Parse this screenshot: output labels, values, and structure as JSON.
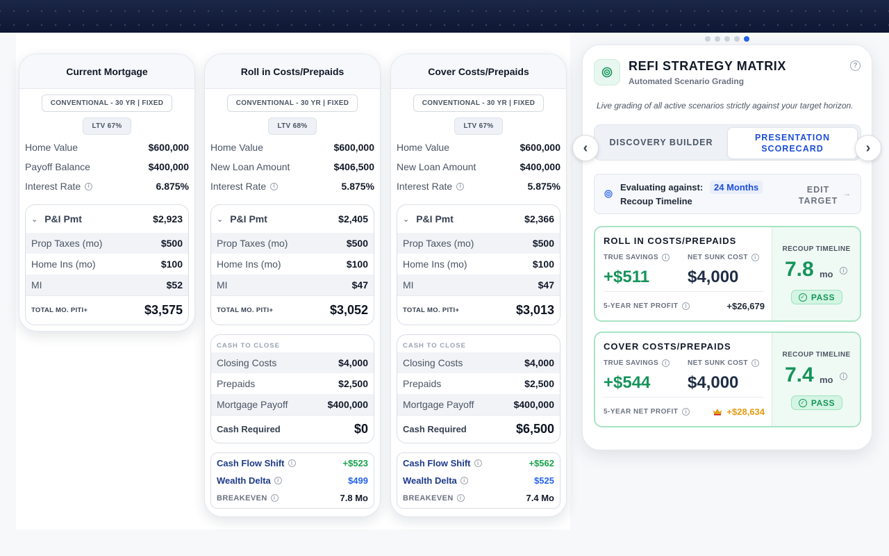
{
  "carousel": {
    "dot_count": 5,
    "active_index": 4
  },
  "cards": [
    {
      "title": "Current Mortgage",
      "loan_type": "CONVENTIONAL - 30 YR | FIXED",
      "ltv": "LTV 67%",
      "rows": [
        {
          "label": "Home Value",
          "value": "$600,000"
        },
        {
          "label": "Payoff Balance",
          "value": "$400,000"
        },
        {
          "label": "Interest Rate",
          "value": "6.875%"
        }
      ],
      "pi_label": "P&I Pmt",
      "pi_value": "$2,923",
      "breakdown": [
        {
          "label": "Prop Taxes (mo)",
          "value": "$500"
        },
        {
          "label": "Home Ins (mo)",
          "value": "$100"
        },
        {
          "label": "MI",
          "value": "$52"
        }
      ],
      "total_label": "TOTAL MO. PITI+",
      "total_value": "$3,575"
    },
    {
      "title": "Roll in Costs/Prepaids",
      "loan_type": "CONVENTIONAL - 30 YR | FIXED",
      "ltv": "LTV 68%",
      "rows": [
        {
          "label": "Home Value",
          "value": "$600,000"
        },
        {
          "label": "New Loan Amount",
          "value": "$406,500"
        },
        {
          "label": "Interest Rate",
          "value": "5.875%"
        }
      ],
      "pi_label": "P&I Pmt",
      "pi_value": "$2,405",
      "breakdown": [
        {
          "label": "Prop Taxes (mo)",
          "value": "$500"
        },
        {
          "label": "Home Ins (mo)",
          "value": "$100"
        },
        {
          "label": "MI",
          "value": "$47"
        }
      ],
      "total_label": "TOTAL MO. PITI+",
      "total_value": "$3,052",
      "cash_title": "CASH TO CLOSE",
      "cash_rows": [
        {
          "label": "Closing Costs",
          "value": "$4,000"
        },
        {
          "label": "Prepaids",
          "value": "$2,500"
        },
        {
          "label": "Mortgage Payoff",
          "value": "$400,000"
        }
      ],
      "cash_required_label": "Cash Required",
      "cash_required_value": "$0",
      "metrics": {
        "cash_flow_label": "Cash Flow Shift",
        "cash_flow_value": "+$523",
        "wealth_label": "Wealth Delta",
        "wealth_value": "$499",
        "breakeven_label": "BREAKEVEN",
        "breakeven_value": "7.8 Mo"
      }
    },
    {
      "title": "Cover Costs/Prepaids",
      "loan_type": "CONVENTIONAL - 30 YR | FIXED",
      "ltv": "LTV 67%",
      "rows": [
        {
          "label": "Home Value",
          "value": "$600,000"
        },
        {
          "label": "New Loan Amount",
          "value": "$400,000"
        },
        {
          "label": "Interest Rate",
          "value": "5.875%"
        }
      ],
      "pi_label": "P&I Pmt",
      "pi_value": "$2,366",
      "breakdown": [
        {
          "label": "Prop Taxes (mo)",
          "value": "$500"
        },
        {
          "label": "Home Ins (mo)",
          "value": "$100"
        },
        {
          "label": "MI",
          "value": "$47"
        }
      ],
      "total_label": "TOTAL MO. PITI+",
      "total_value": "$3,013",
      "cash_title": "CASH TO CLOSE",
      "cash_rows": [
        {
          "label": "Closing Costs",
          "value": "$4,000"
        },
        {
          "label": "Prepaids",
          "value": "$2,500"
        },
        {
          "label": "Mortgage Payoff",
          "value": "$400,000"
        }
      ],
      "cash_required_label": "Cash Required",
      "cash_required_value": "$6,500",
      "metrics": {
        "cash_flow_label": "Cash Flow Shift",
        "cash_flow_value": "+$562",
        "wealth_label": "Wealth Delta",
        "wealth_value": "$525",
        "breakeven_label": "BREAKEVEN",
        "breakeven_value": "7.4 Mo"
      }
    }
  ],
  "panel": {
    "title": "REFI STRATEGY MATRIX",
    "subtitle": "Automated Scenario Grading",
    "note": "Live grading of all active scenarios strictly against your target horizon.",
    "tab_discovery": "DISCOVERY BUILDER",
    "tab_presentation": "PRESENTATION SCORECARD",
    "eval_label": "Evaluating against:",
    "eval_value": "24 Months",
    "eval_label2": "Recoup Timeline",
    "edit_target": "EDIT TARGET",
    "scores": [
      {
        "title": "ROLL IN COSTS/PREPAIDS",
        "true_savings_label": "TRUE SAVINGS",
        "true_savings": "+$511",
        "sunk_cost_label": "NET SUNK COST",
        "sunk_cost": "$4,000",
        "profit_label": "5-YEAR NET PROFIT",
        "profit": "+$26,679",
        "recoup_label": "RECOUP TIMELINE",
        "recoup_value": "7.8",
        "recoup_unit": "mo",
        "status": "PASS"
      },
      {
        "title": "COVER COSTS/PREPAIDS",
        "true_savings_label": "TRUE SAVINGS",
        "true_savings": "+$544",
        "sunk_cost_label": "NET SUNK COST",
        "sunk_cost": "$4,000",
        "profit_label": "5-YEAR NET PROFIT",
        "profit": "+$28,634",
        "recoup_label": "RECOUP TIMELINE",
        "recoup_value": "7.4",
        "recoup_unit": "mo",
        "status": "PASS"
      }
    ]
  },
  "colors": {
    "accent_blue": "#2563eb",
    "pass_green": "#15945a",
    "best_gold": "#e69a10"
  }
}
